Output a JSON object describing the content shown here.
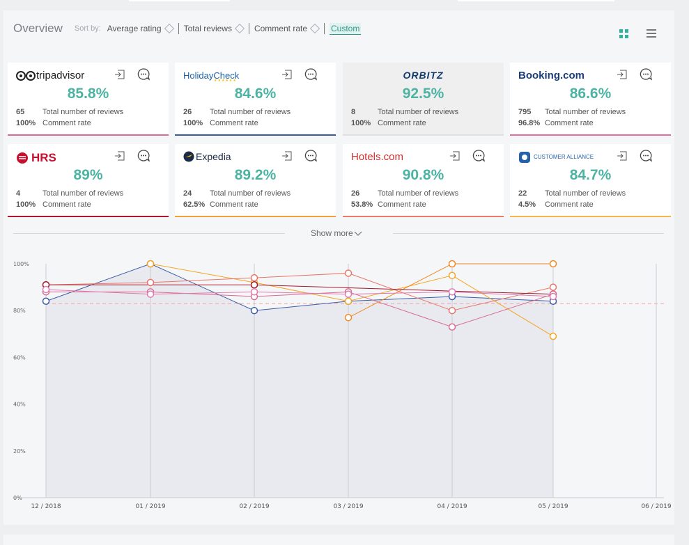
{
  "header": {
    "title": "Overview",
    "sort_by_label": "Sort by:",
    "sort_options": [
      "Average rating",
      "Total reviews",
      "Comment rate"
    ],
    "custom_label": "Custom"
  },
  "view_toggle": {
    "grid_icon": "grid-view-icon",
    "list_icon": "list-view-icon",
    "active": "grid"
  },
  "cards": [
    {
      "logo": "tripadvisor",
      "logo_text": "tripadvisor",
      "rating": "85.8%",
      "total_reviews": "65",
      "comment_rate": "100%",
      "accent": "#d96b8f",
      "total_label": "Total number of reviews",
      "comment_label": "Comment rate"
    },
    {
      "logo": "holidaycheck",
      "logo_text": "HolidayCheck",
      "rating": "84.6%",
      "total_reviews": "26",
      "comment_rate": "100%",
      "accent": "#3a5a9b",
      "total_label": "Total number of reviews",
      "comment_label": "Comment rate"
    },
    {
      "logo": "orbitz",
      "logo_text": "ORBITZ",
      "rating": "92.5%",
      "total_reviews": "8",
      "comment_rate": "100%",
      "accent": "#e0e0e0",
      "total_label": "Total number of reviews",
      "comment_label": "Comment rate"
    },
    {
      "logo": "booking",
      "logo_text": "Booking.com",
      "rating": "86.6%",
      "total_reviews": "795",
      "comment_rate": "96.8%",
      "accent": "#e26da3",
      "total_label": "Total number of reviews",
      "comment_label": "Comment rate"
    },
    {
      "logo": "hrs",
      "logo_text": "HRS",
      "rating": "89%",
      "total_reviews": "4",
      "comment_rate": "100%",
      "accent": "#b0162e",
      "total_label": "Total number of reviews",
      "comment_label": "Comment rate"
    },
    {
      "logo": "expedia",
      "logo_text": "Expedia",
      "rating": "89.2%",
      "total_reviews": "24",
      "comment_rate": "62.5%",
      "accent": "#f0a23a",
      "total_label": "Total number of reviews",
      "comment_label": "Comment rate"
    },
    {
      "logo": "hotels",
      "logo_text": "Hotels.com",
      "rating": "90.8%",
      "total_reviews": "26",
      "comment_rate": "53.8%",
      "accent": "#ea7a6a",
      "total_label": "Total number of reviews",
      "comment_label": "Comment rate"
    },
    {
      "logo": "customer-alliance",
      "logo_text": "CUSTOMER ALLIANCE",
      "rating": "84.7%",
      "total_reviews": "22",
      "comment_rate": "4.5%",
      "accent": "#f4b54a",
      "total_label": "Total number of reviews",
      "comment_label": "Comment rate"
    }
  ],
  "show_more_label": "Show more",
  "chart_data": {
    "type": "line",
    "x": [
      "12 / 2018",
      "01 / 2019",
      "02 / 2019",
      "03 / 2019",
      "04 / 2019",
      "05 / 2019",
      "06 / 2019"
    ],
    "y_ticks": [
      "100%",
      "80%",
      "60%",
      "40%",
      "20%",
      "0%"
    ],
    "ylim": [
      0,
      100
    ],
    "average_line": 83,
    "series": [
      {
        "color": "#3e5da6",
        "values": [
          84,
          100,
          80,
          84,
          86,
          84,
          null
        ]
      },
      {
        "color": "#f5a623",
        "values": [
          null,
          100,
          92,
          84,
          95,
          69,
          null
        ]
      },
      {
        "color": "#f08a24",
        "values": [
          null,
          null,
          null,
          77,
          100,
          100,
          null
        ]
      },
      {
        "color": "#e8766a",
        "values": [
          91,
          92,
          94,
          96,
          80,
          90,
          null
        ]
      },
      {
        "color": "#9e1b2e",
        "values": [
          91,
          null,
          91,
          null,
          null,
          87,
          null
        ]
      },
      {
        "color": "#d96b8f",
        "values": [
          88,
          88,
          86,
          88,
          73,
          87,
          null
        ]
      },
      {
        "color": "#e07ab0",
        "values": [
          89,
          87,
          88,
          87,
          88,
          86,
          null
        ]
      }
    ]
  }
}
